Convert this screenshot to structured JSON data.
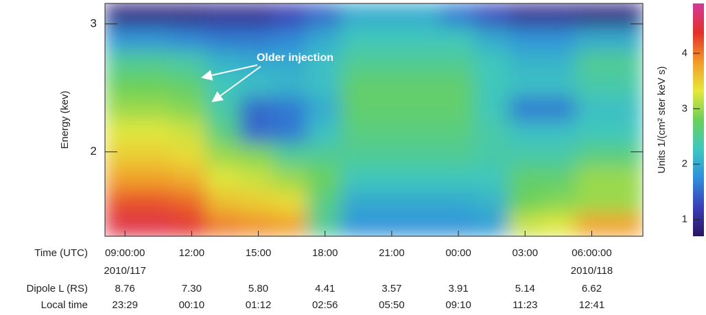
{
  "chart_data": {
    "type": "spectrogram",
    "ylabel": "Energy (kev)",
    "xlabel": "Time (UTC)",
    "annotation": "Older injection",
    "colorbar_label": "Units 1/(cm² ster keV s)",
    "xlim": [
      8.1,
      32.3
    ],
    "ylim": [
      1.34,
      3.16
    ],
    "yticks": [
      2,
      3
    ],
    "xticks": [
      {
        "value": 9,
        "label": "09:00:00",
        "date": "2010/117"
      },
      {
        "value": 12,
        "label": "12:00"
      },
      {
        "value": 15,
        "label": "15:00"
      },
      {
        "value": 18,
        "label": "18:00"
      },
      {
        "value": 21,
        "label": "21:00"
      },
      {
        "value": 24,
        "label": "00:00"
      },
      {
        "value": 27,
        "label": "03:00"
      },
      {
        "value": 30,
        "label": "06:00:00",
        "date": "2010/118"
      }
    ],
    "table_rows": [
      {
        "name": "Dipole L (RS)",
        "labels": [
          "8.76",
          "7.30",
          "5.80",
          "4.41",
          "3.57",
          "3.91",
          "5.14",
          "6.62"
        ]
      },
      {
        "name": "Local time",
        "labels": [
          "23:29",
          "00:10",
          "01:12",
          "02:56",
          "05:50",
          "09:10",
          "11:23",
          "12:41"
        ]
      }
    ],
    "clim": [
      0.7,
      4.9
    ],
    "cticks": [
      1,
      2,
      3,
      4
    ],
    "colormap": [
      "#2b1560",
      "#3a3fb8",
      "#2f8fdc",
      "#3ec7c0",
      "#6bd05a",
      "#e6e83a",
      "#f29a2a",
      "#e3302a",
      "#d23a9a"
    ],
    "z": [
      [
        4.5,
        4.5,
        4.4,
        4.0,
        3.9,
        3.8,
        2.5,
        1.8,
        1.8,
        1.8,
        1.8,
        1.9,
        3.2,
        3.3,
        3.8,
        3.8
      ],
      [
        4.2,
        4.2,
        4.1,
        3.6,
        3.5,
        3.4,
        2.6,
        2.0,
        2.0,
        2.0,
        2.0,
        2.1,
        2.8,
        2.9,
        3.0,
        3.0
      ],
      [
        3.8,
        3.8,
        3.7,
        3.3,
        3.2,
        3.0,
        2.8,
        2.3,
        2.3,
        2.3,
        2.3,
        2.3,
        2.7,
        2.7,
        3.0,
        3.0
      ],
      [
        3.5,
        3.5,
        3.4,
        3.0,
        2.9,
        2.5,
        2.5,
        2.5,
        2.5,
        2.5,
        2.5,
        2.4,
        2.4,
        2.4,
        2.6,
        2.6
      ],
      [
        3.3,
        3.3,
        3.2,
        2.6,
        1.5,
        1.6,
        2.2,
        2.6,
        2.6,
        2.6,
        2.6,
        2.4,
        2.2,
        2.2,
        2.3,
        2.3
      ],
      [
        3.0,
        3.0,
        2.9,
        2.4,
        1.5,
        1.6,
        2.0,
        2.7,
        2.7,
        2.7,
        2.7,
        2.3,
        1.6,
        1.6,
        2.2,
        2.2
      ],
      [
        2.8,
        2.8,
        2.7,
        2.3,
        2.2,
        2.1,
        2.2,
        2.7,
        2.7,
        2.7,
        2.7,
        2.3,
        2.2,
        2.2,
        2.4,
        2.4
      ],
      [
        2.5,
        2.5,
        2.4,
        2.1,
        2.0,
        2.0,
        2.2,
        2.5,
        2.5,
        2.5,
        2.5,
        2.3,
        2.1,
        2.1,
        2.5,
        2.5
      ],
      [
        1.8,
        1.8,
        1.7,
        1.6,
        1.6,
        1.7,
        2.0,
        2.3,
        2.3,
        2.3,
        2.3,
        2.0,
        1.8,
        1.8,
        2.0,
        2.0
      ],
      [
        0.9,
        0.9,
        0.9,
        1.0,
        1.0,
        1.2,
        1.5,
        2.0,
        2.0,
        2.0,
        1.6,
        1.3,
        1.0,
        1.0,
        0.9,
        0.9
      ]
    ]
  }
}
